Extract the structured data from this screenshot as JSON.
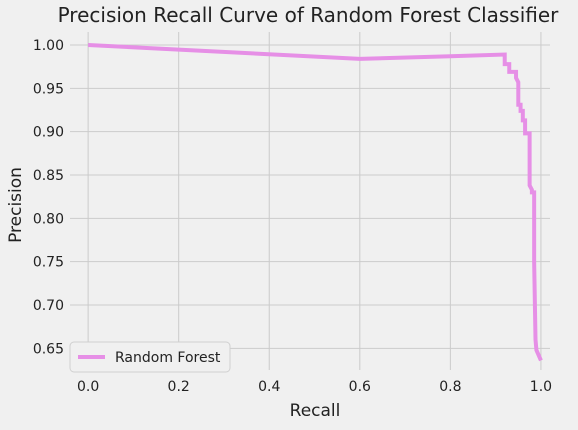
{
  "chart_data": {
    "type": "line",
    "title": "Precision Recall Curve of Random Forest Classifier",
    "xlabel": "Recall",
    "ylabel": "Precision",
    "xlim": [
      -0.04,
      1.02
    ],
    "ylim": [
      0.625,
      1.015
    ],
    "xticks": [
      0.0,
      0.2,
      0.4,
      0.6,
      0.8,
      1.0
    ],
    "xtick_labels": [
      "0.0",
      "0.2",
      "0.4",
      "0.6",
      "0.8",
      "1.0"
    ],
    "yticks": [
      0.65,
      0.7,
      0.75,
      0.8,
      0.85,
      0.9,
      0.95,
      1.0
    ],
    "ytick_labels": [
      "0.65",
      "0.70",
      "0.75",
      "0.80",
      "0.85",
      "0.90",
      "0.95",
      "1.00"
    ],
    "grid": true,
    "legend_position": "lower-left",
    "series": [
      {
        "name": "Random Forest",
        "color": "#e68fe6",
        "x": [
          0.0,
          0.6,
          0.8,
          0.92,
          0.92,
          0.93,
          0.93,
          0.945,
          0.945,
          0.95,
          0.95,
          0.955,
          0.955,
          0.96,
          0.96,
          0.965,
          0.965,
          0.975,
          0.975,
          0.98,
          0.98,
          0.985,
          0.985,
          0.988,
          0.99,
          1.0
        ],
        "y": [
          1.0,
          0.984,
          0.987,
          0.989,
          0.978,
          0.978,
          0.969,
          0.969,
          0.962,
          0.957,
          0.931,
          0.931,
          0.924,
          0.924,
          0.913,
          0.913,
          0.898,
          0.898,
          0.838,
          0.833,
          0.83,
          0.83,
          0.75,
          0.66,
          0.648,
          0.636
        ]
      }
    ]
  }
}
